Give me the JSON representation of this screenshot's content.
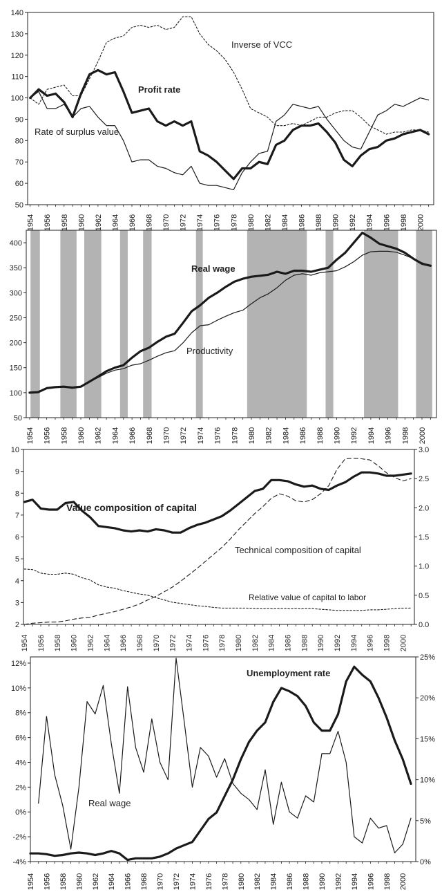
{
  "chart_data": [
    {
      "type": "line",
      "x_ticks": [
        1954,
        1956,
        1958,
        1960,
        1962,
        1964,
        1966,
        1968,
        1970,
        1972,
        1974,
        1976,
        1978,
        1980,
        1982,
        1984,
        1986,
        1988,
        1990,
        1992,
        1994,
        1996,
        1998,
        2000
      ],
      "ylim": [
        50,
        140
      ],
      "y_ticks": [
        50,
        60,
        70,
        80,
        90,
        100,
        110,
        120,
        130,
        140
      ],
      "x": [
        1954,
        1955,
        1956,
        1957,
        1958,
        1959,
        1960,
        1961,
        1962,
        1963,
        1964,
        1965,
        1966,
        1967,
        1968,
        1969,
        1970,
        1971,
        1972,
        1973,
        1974,
        1975,
        1976,
        1977,
        1978,
        1979,
        1980,
        1981,
        1982,
        1983,
        1984,
        1985,
        1986,
        1987,
        1988,
        1989,
        1990,
        1991,
        1992,
        1993,
        1994,
        1995,
        1996,
        1997,
        1998,
        1999,
        2000,
        2001
      ],
      "series": [
        {
          "name": "Profit rate",
          "style": "bold",
          "values": [
            100,
            104,
            101,
            102,
            98,
            91,
            102,
            111,
            113,
            111,
            112,
            103,
            93,
            94,
            95,
            89,
            87,
            89,
            87,
            89,
            75,
            73,
            70,
            66,
            62,
            67,
            67,
            70,
            69,
            78,
            80,
            85,
            87,
            87,
            88,
            84,
            79,
            71,
            68,
            73,
            76,
            77,
            80,
            81,
            83,
            84,
            85,
            83
          ]
        },
        {
          "name": "Inverse of VCC",
          "style": "dotted",
          "values": [
            100,
            97,
            104,
            105,
            106,
            101,
            101,
            109,
            117,
            126,
            128,
            129,
            133,
            134,
            133,
            134,
            132,
            133,
            138,
            138,
            130,
            125,
            122,
            118,
            112,
            104,
            95,
            93,
            91,
            87,
            87,
            88,
            87,
            89,
            91,
            91,
            93,
            94,
            94,
            91,
            87,
            85,
            83,
            84,
            84,
            85,
            85,
            84
          ]
        },
        {
          "name": "Rate of surplus value",
          "style": "thin",
          "values": [
            100,
            103,
            95,
            95,
            97,
            91,
            95,
            96,
            91,
            87,
            87,
            80,
            70,
            71,
            71,
            68,
            67,
            65,
            64,
            68,
            60,
            59,
            59,
            58,
            57,
            65,
            70,
            74,
            75,
            89,
            92,
            97,
            96,
            95,
            96,
            90,
            85,
            80,
            77,
            76,
            84,
            92,
            94,
            97,
            96,
            98,
            100,
            99
          ]
        }
      ]
    },
    {
      "type": "line",
      "x_ticks": [
        1954,
        1956,
        1958,
        1960,
        1962,
        1964,
        1966,
        1968,
        1970,
        1972,
        1974,
        1976,
        1978,
        1980,
        1982,
        1984,
        1986,
        1988,
        1990,
        1992,
        1994,
        1996,
        1998,
        2000
      ],
      "ylim": [
        50,
        425
      ],
      "y_ticks": [
        50,
        100,
        150,
        200,
        250,
        300,
        350,
        400
      ],
      "recession_bands": [
        [
          1954.1,
          1955.2
        ],
        [
          1957.6,
          1959.5
        ],
        [
          1960.4,
          1962.4
        ],
        [
          1964.6,
          1965.5
        ],
        [
          1967.3,
          1968.3
        ],
        [
          1973.5,
          1974.3
        ],
        [
          1979.5,
          1986.5
        ],
        [
          1988.7,
          1989.6
        ],
        [
          1993.2,
          1997.2
        ],
        [
          1999.3,
          2001.2
        ]
      ],
      "x": [
        1954,
        1955,
        1956,
        1957,
        1958,
        1959,
        1960,
        1961,
        1962,
        1963,
        1964,
        1965,
        1966,
        1967,
        1968,
        1969,
        1970,
        1971,
        1972,
        1973,
        1974,
        1975,
        1976,
        1977,
        1978,
        1979,
        1980,
        1981,
        1982,
        1983,
        1984,
        1985,
        1986,
        1987,
        1988,
        1989,
        1990,
        1991,
        1992,
        1993,
        1994,
        1995,
        1996,
        1997,
        1998,
        1999,
        2000,
        2001
      ],
      "series": [
        {
          "name": "Real wage",
          "style": "bold",
          "values": [
            100,
            101,
            109,
            111,
            112,
            110,
            112,
            122,
            132,
            143,
            150,
            155,
            170,
            183,
            190,
            202,
            212,
            218,
            240,
            263,
            275,
            290,
            300,
            312,
            322,
            328,
            332,
            334,
            336,
            342,
            338,
            344,
            344,
            342,
            346,
            350,
            366,
            380,
            400,
            420,
            410,
            398,
            393,
            388,
            380,
            368,
            358,
            354
          ]
        },
        {
          "name": "Productivity",
          "style": "thin",
          "values": [
            100,
            102,
            108,
            111,
            112,
            109,
            113,
            122,
            130,
            139,
            145,
            148,
            155,
            158,
            165,
            173,
            180,
            184,
            200,
            220,
            234,
            236,
            245,
            253,
            260,
            265,
            278,
            290,
            298,
            310,
            325,
            335,
            338,
            335,
            340,
            342,
            344,
            352,
            362,
            375,
            382,
            383,
            383,
            381,
            375,
            368,
            360,
            354
          ]
        }
      ]
    },
    {
      "type": "line",
      "x_ticks": [
        1954,
        1956,
        1958,
        1960,
        1962,
        1964,
        1966,
        1968,
        1970,
        1972,
        1974,
        1976,
        1978,
        1980,
        1982,
        1984,
        1986,
        1988,
        1990,
        1992,
        1994,
        1996,
        1998,
        2000
      ],
      "ylim": [
        2,
        10
      ],
      "y_ticks": [
        2,
        3,
        4,
        5,
        6,
        7,
        8,
        9,
        10
      ],
      "y2lim": [
        0,
        3
      ],
      "y2_ticks": [
        "0.0",
        "0.5",
        "1.0",
        "1.5",
        "2.0",
        "2.5",
        "3.0"
      ],
      "x": [
        1954,
        1955,
        1956,
        1957,
        1958,
        1959,
        1960,
        1961,
        1962,
        1963,
        1964,
        1965,
        1966,
        1967,
        1968,
        1969,
        1970,
        1971,
        1972,
        1973,
        1974,
        1975,
        1976,
        1977,
        1978,
        1979,
        1980,
        1981,
        1982,
        1983,
        1984,
        1985,
        1986,
        1987,
        1988,
        1989,
        1990,
        1991,
        1992,
        1993,
        1994,
        1995,
        1996,
        1997,
        1998,
        1999,
        2000,
        2001
      ],
      "series": [
        {
          "name": "Value composition of capital",
          "style": "bold",
          "axis": "left",
          "values": [
            7.6,
            7.7,
            7.3,
            7.25,
            7.25,
            7.55,
            7.6,
            7.2,
            6.9,
            6.5,
            6.45,
            6.4,
            6.3,
            6.25,
            6.3,
            6.25,
            6.35,
            6.3,
            6.2,
            6.2,
            6.4,
            6.55,
            6.65,
            6.8,
            6.95,
            7.2,
            7.5,
            7.8,
            8.1,
            8.2,
            8.6,
            8.6,
            8.55,
            8.4,
            8.3,
            8.35,
            8.2,
            8.15,
            8.35,
            8.5,
            8.75,
            8.95,
            8.95,
            8.9,
            8.8,
            8.8,
            8.85,
            8.9
          ]
        },
        {
          "name": "Technical composition of capital",
          "style": "dashed",
          "axis": "right",
          "values": [
            0.0,
            0.02,
            0.03,
            0.04,
            0.04,
            0.06,
            0.09,
            0.11,
            0.12,
            0.16,
            0.19,
            0.22,
            0.26,
            0.3,
            0.35,
            0.42,
            0.48,
            0.56,
            0.64,
            0.74,
            0.85,
            0.96,
            1.08,
            1.2,
            1.32,
            1.46,
            1.62,
            1.76,
            1.9,
            2.02,
            2.16,
            2.24,
            2.2,
            2.12,
            2.1,
            2.14,
            2.24,
            2.38,
            2.66,
            2.84,
            2.85,
            2.84,
            2.82,
            2.72,
            2.6,
            2.52,
            2.46,
            2.5
          ]
        },
        {
          "name": "Relative value of capital to labor",
          "style": "dotted",
          "axis": "right",
          "values": [
            0.95,
            0.94,
            0.88,
            0.86,
            0.86,
            0.88,
            0.86,
            0.8,
            0.76,
            0.68,
            0.64,
            0.62,
            0.58,
            0.55,
            0.52,
            0.5,
            0.46,
            0.42,
            0.38,
            0.36,
            0.34,
            0.32,
            0.31,
            0.29,
            0.28,
            0.28,
            0.28,
            0.28,
            0.27,
            0.27,
            0.27,
            0.27,
            0.27,
            0.27,
            0.27,
            0.27,
            0.26,
            0.25,
            0.24,
            0.24,
            0.24,
            0.24,
            0.25,
            0.25,
            0.26,
            0.27,
            0.28,
            0.28
          ]
        }
      ]
    },
    {
      "type": "line",
      "x_ticks": [
        1954,
        1956,
        1958,
        1960,
        1962,
        1964,
        1966,
        1968,
        1970,
        1972,
        1974,
        1976,
        1978,
        1980,
        1982,
        1984,
        1986,
        1988,
        1990,
        1992,
        1994,
        1996,
        1998,
        2000
      ],
      "ylim": [
        -4,
        12.5
      ],
      "y_ticks": [
        "-4%",
        "-2%",
        "0%",
        "2%",
        "4%",
        "6%",
        "8%",
        "10%",
        "12%"
      ],
      "y2lim": [
        0,
        25
      ],
      "y2_ticks": [
        "0%",
        "5%",
        "10%",
        "15%",
        "20%",
        "25%"
      ],
      "x": [
        1954,
        1955,
        1956,
        1957,
        1958,
        1959,
        1960,
        1961,
        1962,
        1963,
        1964,
        1965,
        1966,
        1967,
        1968,
        1969,
        1970,
        1971,
        1972,
        1973,
        1974,
        1975,
        1976,
        1977,
        1978,
        1979,
        1980,
        1981,
        1982,
        1983,
        1984,
        1985,
        1986,
        1987,
        1988,
        1989,
        1990,
        1991,
        1992,
        1993,
        1994,
        1995,
        1996,
        1997,
        1998,
        1999,
        2000,
        2001
      ],
      "series": [
        {
          "name": "Real wage",
          "style": "thin",
          "axis": "left",
          "values": [
            null,
            0.7,
            7.7,
            3.0,
            0.5,
            -3.0,
            2.0,
            8.9,
            7.9,
            10.2,
            5.5,
            1.5,
            10.1,
            5.2,
            3.2,
            7.5,
            4.0,
            2.6,
            12.4,
            7.3,
            2.0,
            5.2,
            4.5,
            2.8,
            4.3,
            2.3,
            1.5,
            1.0,
            0.2,
            3.4,
            -1.0,
            2.4,
            0.0,
            -0.5,
            1.3,
            0.8,
            4.7,
            4.7,
            6.5,
            4.0,
            -2.0,
            -2.5,
            -0.5,
            -1.3,
            -1.1,
            -3.3,
            -2.6,
            -0.5
          ]
        },
        {
          "name": "Unemployment rate",
          "style": "bold",
          "axis": "right",
          "values": [
            1.0,
            1.0,
            0.9,
            0.7,
            0.8,
            1.0,
            1.1,
            1.0,
            0.8,
            1.0,
            1.3,
            1.0,
            0.2,
            0.4,
            0.4,
            0.4,
            0.6,
            1.0,
            1.6,
            2.0,
            2.4,
            3.8,
            5.2,
            6.0,
            8.0,
            10.0,
            12.5,
            14.6,
            16.0,
            17.0,
            19.5,
            21.2,
            20.8,
            20.2,
            19.0,
            17.0,
            16.0,
            16.0,
            18.0,
            22.0,
            23.8,
            22.8,
            22.0,
            20.0,
            17.6,
            14.8,
            12.5,
            9.5
          ]
        }
      ]
    }
  ],
  "labels": {
    "chart1": {
      "profit_rate": "Profit rate",
      "inverse_vcc": "Inverse of VCC",
      "rate_surplus": "Rate of surplus value"
    },
    "chart2": {
      "real_wage": "Real wage",
      "productivity": "Productivity"
    },
    "chart3": {
      "value_comp": "Value composition of capital",
      "technical_comp": "Technical composition of capital",
      "relative_value": "Relative value of capital to labor"
    },
    "chart4": {
      "unemployment": "Unemployment rate",
      "real_wage": "Real wage"
    }
  }
}
